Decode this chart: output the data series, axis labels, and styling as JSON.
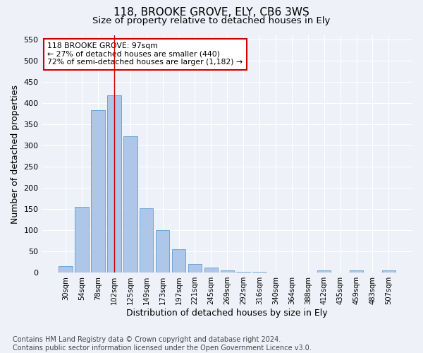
{
  "title1": "118, BROOKE GROVE, ELY, CB6 3WS",
  "title2": "Size of property relative to detached houses in Ely",
  "xlabel": "Distribution of detached houses by size in Ely",
  "ylabel": "Number of detached properties",
  "categories": [
    "30sqm",
    "54sqm",
    "78sqm",
    "102sqm",
    "125sqm",
    "149sqm",
    "173sqm",
    "197sqm",
    "221sqm",
    "245sqm",
    "269sqm",
    "292sqm",
    "316sqm",
    "340sqm",
    "364sqm",
    "388sqm",
    "412sqm",
    "435sqm",
    "459sqm",
    "483sqm",
    "507sqm"
  ],
  "values": [
    15,
    155,
    383,
    418,
    322,
    152,
    100,
    55,
    20,
    12,
    6,
    2,
    2,
    1,
    0,
    0,
    5,
    0,
    5,
    0,
    5
  ],
  "bar_color": "#aec6e8",
  "bar_edge_color": "#5a9fd4",
  "vline_x": 3,
  "vline_color": "#cc0000",
  "annotation_text": "118 BROOKE GROVE: 97sqm\n← 27% of detached houses are smaller (440)\n72% of semi-detached houses are larger (1,182) →",
  "annotation_box_color": "#ffffff",
  "annotation_box_edge_color": "#cc0000",
  "ylim": [
    0,
    560
  ],
  "yticks": [
    0,
    50,
    100,
    150,
    200,
    250,
    300,
    350,
    400,
    450,
    500,
    550
  ],
  "footer": "Contains HM Land Registry data © Crown copyright and database right 2024.\nContains public sector information licensed under the Open Government Licence v3.0.",
  "background_color": "#eef2f8",
  "grid_color": "#ffffff",
  "title1_fontsize": 11,
  "title2_fontsize": 9.5,
  "xlabel_fontsize": 9,
  "ylabel_fontsize": 9,
  "footer_fontsize": 7
}
